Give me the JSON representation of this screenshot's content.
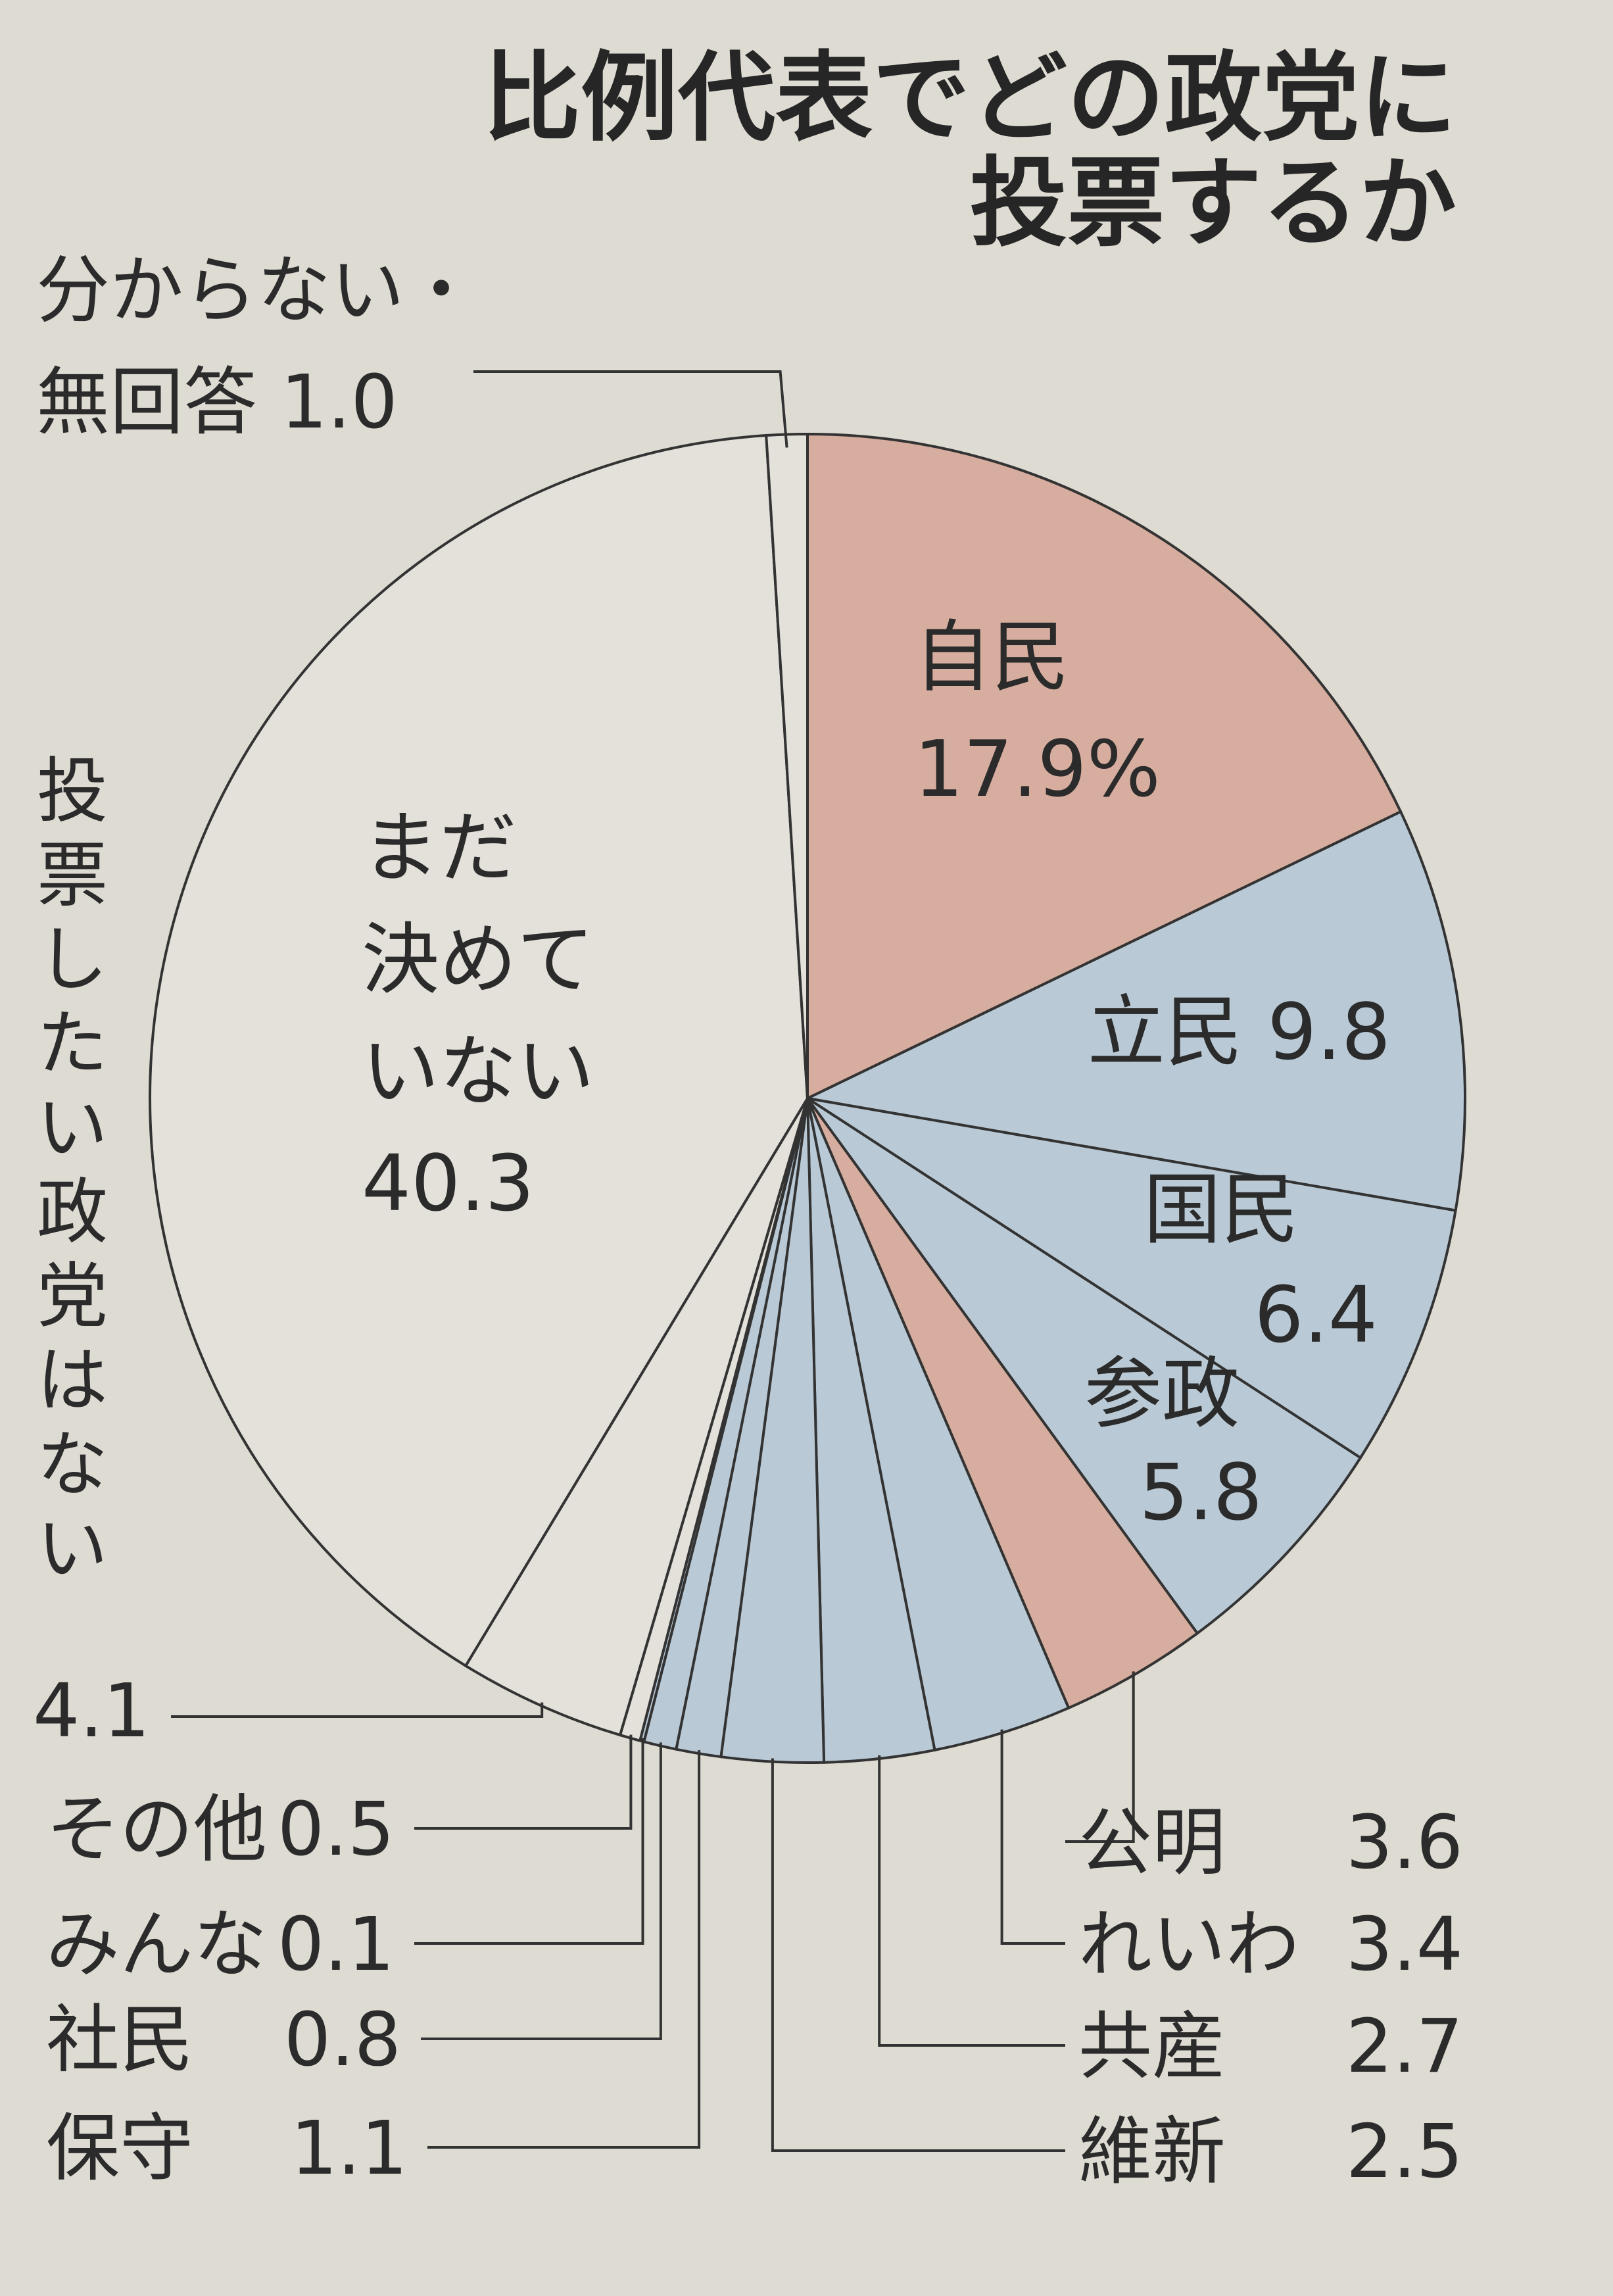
{
  "title_lines": [
    "比例代表でどの政党に",
    "投票するか"
  ],
  "chart_data": {
    "type": "pie",
    "title": "比例代表でどの政党に投票するか",
    "unit": "%",
    "slices": [
      {
        "label": "自民",
        "value": 17.9,
        "value_text": "17.9%",
        "color": "#d6ad9e"
      },
      {
        "label": "立民",
        "value": 9.8,
        "value_text": "9.8",
        "color": "#b9cad6"
      },
      {
        "label": "国民",
        "value": 6.4,
        "value_text": "6.4",
        "color": "#b9cad6"
      },
      {
        "label": "参政",
        "value": 5.8,
        "value_text": "5.8",
        "color": "#b9cad6"
      },
      {
        "label": "公明",
        "value": 3.6,
        "value_text": "3.6",
        "color": "#d6ad9e"
      },
      {
        "label": "れいわ",
        "value": 3.4,
        "value_text": "3.4",
        "color": "#b9cad6"
      },
      {
        "label": "共産",
        "value": 2.7,
        "value_text": "2.7",
        "color": "#b9cad6"
      },
      {
        "label": "維新",
        "value": 2.5,
        "value_text": "2.5",
        "color": "#b9cad6"
      },
      {
        "label": "保守",
        "value": 1.1,
        "value_text": "1.1",
        "color": "#b9cad6"
      },
      {
        "label": "社民",
        "value": 0.8,
        "value_text": "0.8",
        "color": "#b9cad6"
      },
      {
        "label": "みんな",
        "value": 0.1,
        "value_text": "0.1",
        "color": "#b9cad6"
      },
      {
        "label": "その他",
        "value": 0.5,
        "value_text": "0.5",
        "color": "#e4e1da"
      },
      {
        "label": "投票したい政党はない",
        "value": 4.1,
        "value_text": "4.1",
        "color": "#e4e1da"
      },
      {
        "label": "まだ決めていない",
        "value": 40.3,
        "value_text": "40.3",
        "color": "#e4e1da"
      },
      {
        "label": "分からない・無回答",
        "value": 1.0,
        "value_text": "1.0",
        "color": "#e4e1da"
      }
    ]
  }
}
